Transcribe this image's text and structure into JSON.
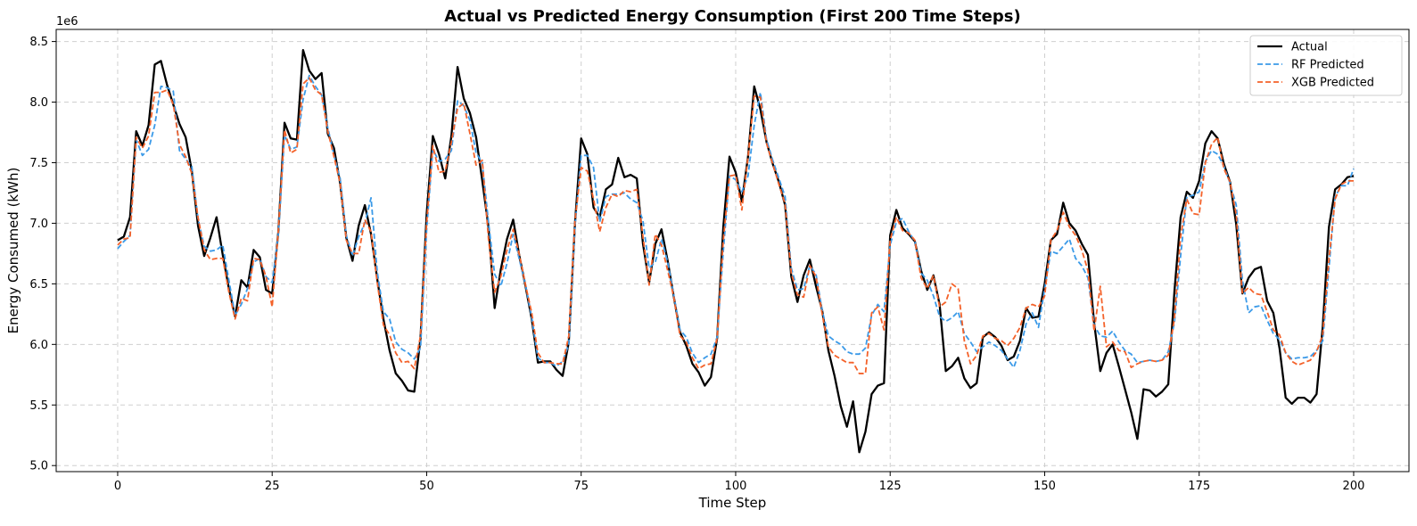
{
  "chart_data": {
    "type": "line",
    "title": "Actual vs Predicted Energy Consumption (First 200 Time Steps)",
    "xlabel": "Time Step",
    "ylabel": "Energy Consumed (kWh)",
    "y_offset_label": "1e6",
    "xlim": [
      -9.95,
      208.95
    ],
    "ylim": [
      4.95,
      8.6
    ],
    "xticks": [
      0,
      25,
      50,
      75,
      100,
      125,
      150,
      175,
      200
    ],
    "xtick_labels": [
      "0",
      "25",
      "50",
      "75",
      "100",
      "125",
      "150",
      "175",
      "200"
    ],
    "yticks": [
      5.0,
      5.5,
      6.0,
      6.5,
      7.0,
      7.5,
      8.0,
      8.5
    ],
    "ytick_labels": [
      "5.0",
      "5.5",
      "6.0",
      "6.5",
      "7.0",
      "7.5",
      "8.0",
      "8.5"
    ],
    "grid": true,
    "legend_position": "top-right",
    "x_start": 0,
    "series": [
      {
        "name": "Actual",
        "color": "#000000",
        "style": "solid",
        "values": [
          6.86,
          6.89,
          7.05,
          7.76,
          7.64,
          7.81,
          8.31,
          8.34,
          8.14,
          7.98,
          7.82,
          7.71,
          7.43,
          6.98,
          6.73,
          6.88,
          7.05,
          6.74,
          6.46,
          6.23,
          6.53,
          6.47,
          6.78,
          6.72,
          6.45,
          6.42,
          6.93,
          7.83,
          7.7,
          7.69,
          8.43,
          8.26,
          8.19,
          8.24,
          7.74,
          7.62,
          7.33,
          6.88,
          6.69,
          6.98,
          7.15,
          6.91,
          6.54,
          6.21,
          5.95,
          5.76,
          5.7,
          5.62,
          5.61,
          6.05,
          7.08,
          7.72,
          7.57,
          7.37,
          7.72,
          8.29,
          8.03,
          7.91,
          7.71,
          7.35,
          6.97,
          6.3,
          6.62,
          6.87,
          7.03,
          6.73,
          6.48,
          6.21,
          5.85,
          5.86,
          5.86,
          5.79,
          5.74,
          6.02,
          7.0,
          7.7,
          7.57,
          7.13,
          7.05,
          7.28,
          7.32,
          7.54,
          7.38,
          7.4,
          7.37,
          6.83,
          6.51,
          6.83,
          6.95,
          6.69,
          6.39,
          6.1,
          5.99,
          5.84,
          5.77,
          5.66,
          5.73,
          6.05,
          6.97,
          7.55,
          7.42,
          7.18,
          7.55,
          8.13,
          7.94,
          7.67,
          7.49,
          7.34,
          7.15,
          6.56,
          6.35,
          6.57,
          6.7,
          6.48,
          6.28,
          5.95,
          5.74,
          5.49,
          5.32,
          5.53,
          5.11,
          5.28,
          5.59,
          5.66,
          5.68,
          6.9,
          7.11,
          6.96,
          6.91,
          6.85,
          6.61,
          6.45,
          6.57,
          6.33,
          5.78,
          5.82,
          5.89,
          5.72,
          5.64,
          5.68,
          6.06,
          6.1,
          6.06,
          5.99,
          5.87,
          5.9,
          6.03,
          6.3,
          6.22,
          6.23,
          6.5,
          6.86,
          6.91,
          7.17,
          7.0,
          6.94,
          6.83,
          6.74,
          6.18,
          5.78,
          5.93,
          6.0,
          5.82,
          5.63,
          5.44,
          5.22,
          5.63,
          5.62,
          5.57,
          5.61,
          5.67,
          6.44,
          7.05,
          7.26,
          7.21,
          7.35,
          7.66,
          7.76,
          7.7,
          7.49,
          7.34,
          6.99,
          6.42,
          6.55,
          6.62,
          6.64,
          6.36,
          6.26,
          5.97,
          5.56,
          5.51,
          5.56,
          5.56,
          5.52,
          5.59,
          6.15,
          6.97,
          7.28,
          7.32,
          7.38,
          7.39
        ]
      },
      {
        "name": "RF Predicted",
        "color": "#3b9ae8",
        "style": "dashed",
        "values": [
          6.79,
          6.85,
          6.9,
          7.69,
          7.56,
          7.61,
          7.81,
          8.13,
          8.12,
          8.09,
          7.6,
          7.53,
          7.47,
          7.04,
          6.81,
          6.77,
          6.78,
          6.82,
          6.53,
          6.24,
          6.33,
          6.46,
          6.68,
          6.71,
          6.56,
          6.51,
          6.91,
          7.73,
          7.61,
          7.63,
          8.02,
          8.22,
          8.13,
          8.06,
          7.79,
          7.56,
          7.37,
          6.9,
          6.73,
          6.89,
          7.0,
          7.21,
          6.6,
          6.27,
          6.21,
          6.02,
          5.96,
          5.93,
          5.88,
          5.97,
          6.95,
          7.61,
          7.51,
          7.53,
          7.6,
          8.01,
          7.97,
          7.85,
          7.58,
          7.5,
          7.01,
          6.58,
          6.48,
          6.67,
          6.91,
          6.7,
          6.49,
          6.22,
          5.89,
          5.85,
          5.85,
          5.82,
          5.86,
          6.0,
          6.97,
          7.56,
          7.56,
          7.46,
          7.01,
          7.22,
          7.24,
          7.24,
          7.25,
          7.2,
          7.17,
          7.02,
          6.63,
          6.68,
          6.87,
          6.68,
          6.4,
          6.12,
          6.06,
          5.93,
          5.85,
          5.89,
          5.92,
          6.06,
          6.77,
          7.39,
          7.36,
          7.26,
          7.39,
          7.81,
          8.08,
          7.69,
          7.52,
          7.37,
          7.22,
          6.63,
          6.45,
          6.46,
          6.65,
          6.58,
          6.28,
          6.07,
          6.03,
          6.0,
          5.94,
          5.92,
          5.92,
          5.97,
          6.24,
          6.33,
          6.27,
          6.82,
          7.01,
          7.04,
          6.93,
          6.85,
          6.59,
          6.53,
          6.4,
          6.23,
          6.19,
          6.22,
          6.27,
          6.09,
          6.02,
          5.94,
          5.98,
          6.02,
          5.99,
          5.95,
          5.88,
          5.81,
          5.95,
          6.17,
          6.26,
          6.14,
          6.46,
          6.77,
          6.75,
          6.81,
          6.87,
          6.71,
          6.65,
          6.55,
          6.16,
          6.07,
          6.06,
          6.11,
          6.02,
          5.95,
          5.92,
          5.85,
          5.86,
          5.87,
          5.86,
          5.87,
          5.94,
          6.18,
          6.73,
          7.22,
          7.23,
          7.26,
          7.51,
          7.6,
          7.57,
          7.47,
          7.33,
          7.15,
          6.53,
          6.26,
          6.31,
          6.32,
          6.2,
          6.09,
          6.04,
          5.93,
          5.88,
          5.89,
          5.89,
          5.9,
          5.95,
          6.03,
          6.63,
          7.22,
          7.31,
          7.31,
          7.45
        ]
      },
      {
        "name": "XGB Predicted",
        "color": "#f4622a",
        "style": "dashed",
        "values": [
          6.82,
          6.87,
          6.88,
          7.71,
          7.62,
          7.72,
          8.08,
          8.08,
          8.1,
          7.98,
          7.65,
          7.55,
          7.41,
          7.05,
          6.78,
          6.7,
          6.71,
          6.71,
          6.43,
          6.21,
          6.38,
          6.36,
          6.71,
          6.7,
          6.56,
          6.31,
          6.94,
          7.77,
          7.58,
          7.61,
          8.15,
          8.2,
          8.1,
          8.06,
          7.76,
          7.55,
          7.33,
          6.86,
          6.75,
          6.75,
          7.03,
          6.93,
          6.51,
          6.16,
          6.08,
          5.93,
          5.85,
          5.86,
          5.8,
          6.07,
          7.0,
          7.64,
          7.42,
          7.43,
          7.67,
          7.95,
          7.99,
          7.74,
          7.48,
          7.52,
          6.87,
          6.43,
          6.56,
          6.78,
          6.95,
          6.74,
          6.49,
          6.26,
          5.93,
          5.85,
          5.85,
          5.84,
          5.84,
          6.07,
          7.02,
          7.46,
          7.43,
          7.2,
          6.93,
          7.13,
          7.24,
          7.22,
          7.27,
          7.26,
          7.28,
          6.89,
          6.49,
          6.91,
          6.82,
          6.61,
          6.39,
          6.07,
          6.02,
          5.89,
          5.8,
          5.83,
          5.84,
          6.05,
          6.86,
          7.39,
          7.4,
          7.11,
          7.55,
          8.05,
          8.04,
          7.66,
          7.49,
          7.32,
          7.16,
          6.59,
          6.41,
          6.39,
          6.65,
          6.56,
          6.25,
          5.98,
          5.91,
          5.88,
          5.85,
          5.85,
          5.76,
          5.76,
          6.26,
          6.31,
          6.12,
          6.86,
          7.05,
          6.94,
          6.92,
          6.86,
          6.55,
          6.46,
          6.57,
          6.31,
          6.35,
          6.5,
          6.46,
          6.03,
          5.84,
          5.91,
          6.07,
          6.09,
          6.05,
          6.03,
          5.99,
          6.05,
          6.14,
          6.3,
          6.33,
          6.31,
          6.4,
          6.86,
          6.94,
          7.09,
          6.97,
          6.9,
          6.78,
          6.61,
          6.11,
          6.48,
          5.98,
          6.02,
          5.95,
          5.94,
          5.81,
          5.84,
          5.86,
          5.87,
          5.86,
          5.87,
          5.91,
          6.21,
          6.89,
          7.2,
          7.08,
          7.07,
          7.5,
          7.65,
          7.71,
          7.45,
          7.34,
          7.07,
          6.42,
          6.47,
          6.42,
          6.41,
          6.27,
          6.12,
          6.08,
          5.93,
          5.86,
          5.83,
          5.85,
          5.87,
          5.94,
          6.08,
          6.7,
          7.2,
          7.32,
          7.35,
          7.35
        ]
      }
    ]
  }
}
